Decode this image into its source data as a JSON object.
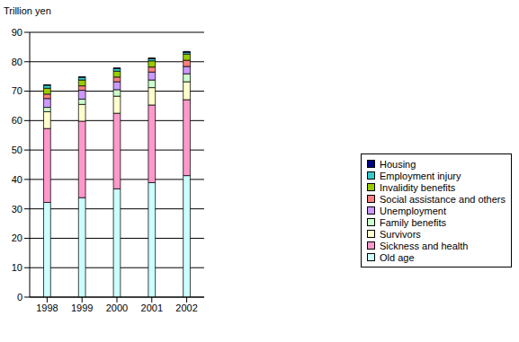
{
  "chart_data": {
    "type": "bar",
    "y_label": "Trillion yen",
    "stacked": true,
    "grid": true,
    "legend": "right",
    "categories": [
      "1998",
      "1999",
      "2000",
      "2001",
      "2002"
    ],
    "ylim": [
      0,
      90
    ],
    "yticks": [
      0,
      10,
      20,
      30,
      40,
      50,
      60,
      70,
      80,
      90
    ],
    "series": [
      {
        "name": "Old age",
        "color": "#ccffff",
        "values": [
          32.2,
          33.8,
          36.8,
          38.9,
          41.3
        ]
      },
      {
        "name": "Sickness and health",
        "color": "#ff99cc",
        "values": [
          25.1,
          26.0,
          25.7,
          26.4,
          25.8
        ]
      },
      {
        "name": "Survivors",
        "color": "#ffffcc",
        "values": [
          5.7,
          5.7,
          5.8,
          5.9,
          6.1
        ]
      },
      {
        "name": "Family benefits",
        "color": "#ccffcc",
        "values": [
          1.5,
          1.8,
          2.2,
          2.6,
          2.7
        ]
      },
      {
        "name": "Unemployment",
        "color": "#cc99ff",
        "values": [
          3.0,
          3.0,
          2.7,
          2.7,
          2.5
        ]
      },
      {
        "name": "Social assistance and others",
        "color": "#ff8080",
        "values": [
          1.5,
          1.5,
          1.6,
          1.7,
          2.1
        ]
      },
      {
        "name": "Invalidity benefits",
        "color": "#99cc00",
        "values": [
          2.0,
          2.0,
          2.0,
          2.1,
          2.1
        ]
      },
      {
        "name": "Employment injury",
        "color": "#33cccc",
        "values": [
          1.0,
          0.9,
          0.9,
          0.7,
          0.6
        ]
      },
      {
        "name": "Housing",
        "color": "#000080",
        "values": [
          0.2,
          0.2,
          0.2,
          0.3,
          0.3
        ]
      }
    ]
  }
}
